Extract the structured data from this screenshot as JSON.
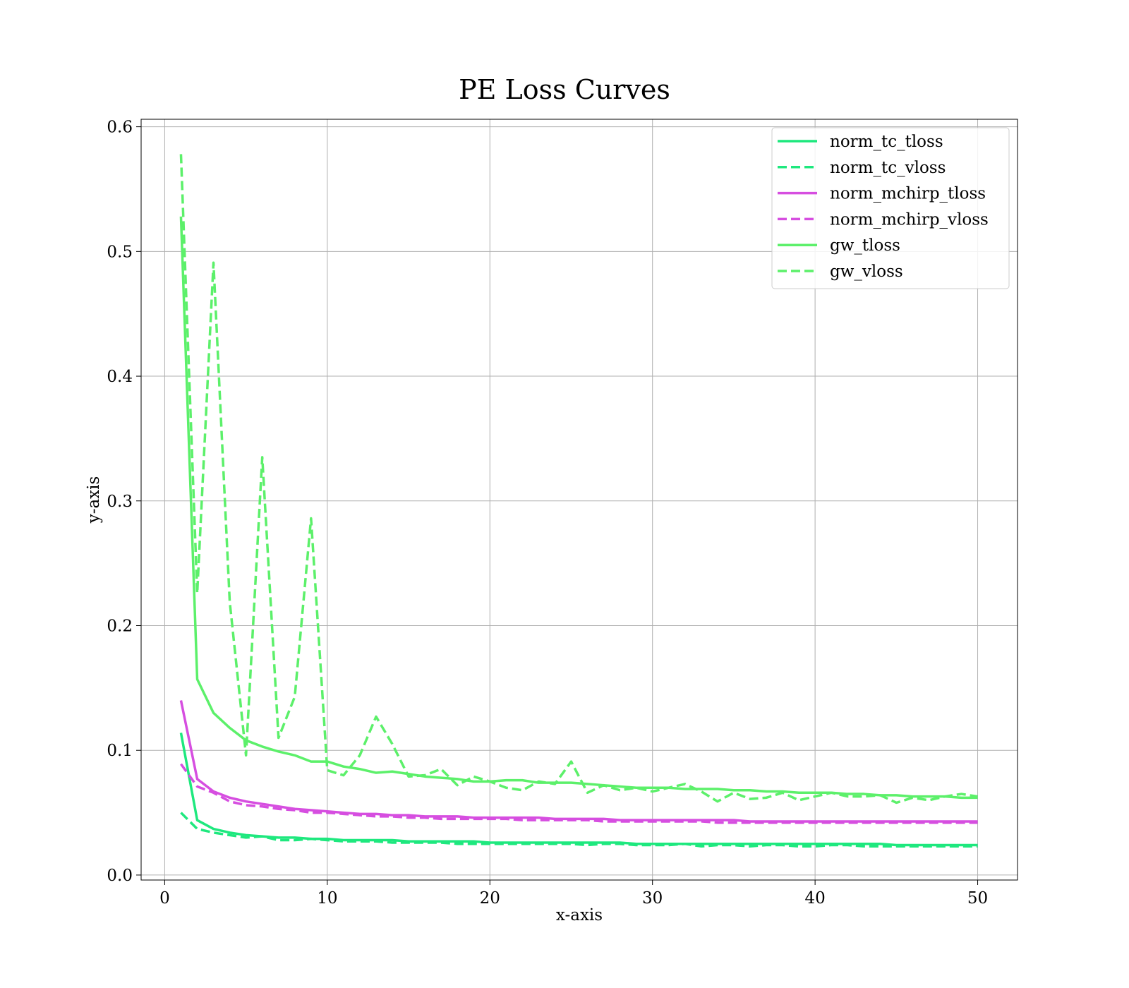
{
  "chart_data": {
    "type": "line",
    "title": "PE Loss Curves",
    "xlabel": "x-axis",
    "ylabel": "y-axis",
    "xlim": [
      -1.45,
      52.45
    ],
    "ylim": [
      -0.004,
      0.606
    ],
    "xticks": [
      0,
      10,
      20,
      30,
      40,
      50
    ],
    "xtick_labels": [
      "0",
      "10",
      "20",
      "30",
      "40",
      "50"
    ],
    "yticks": [
      0.0,
      0.1,
      0.2,
      0.3,
      0.4,
      0.5,
      0.6
    ],
    "ytick_labels": [
      "0.0",
      "0.1",
      "0.2",
      "0.3",
      "0.4",
      "0.5",
      "0.6"
    ],
    "grid": true,
    "legend_position": "top-right",
    "x": [
      1,
      2,
      3,
      4,
      5,
      6,
      7,
      8,
      9,
      10,
      11,
      12,
      13,
      14,
      15,
      16,
      17,
      18,
      19,
      20,
      21,
      22,
      23,
      24,
      25,
      26,
      27,
      28,
      29,
      30,
      31,
      32,
      33,
      34,
      35,
      36,
      37,
      38,
      39,
      40,
      41,
      42,
      43,
      44,
      45,
      46,
      47,
      48,
      49,
      50
    ],
    "series": [
      {
        "name": "norm_tc_tloss",
        "color": "#1ee87e",
        "style": "solid",
        "values": [
          0.114,
          0.044,
          0.037,
          0.034,
          0.032,
          0.031,
          0.03,
          0.03,
          0.029,
          0.029,
          0.028,
          0.028,
          0.028,
          0.028,
          0.027,
          0.027,
          0.027,
          0.027,
          0.027,
          0.026,
          0.026,
          0.026,
          0.026,
          0.026,
          0.026,
          0.026,
          0.026,
          0.026,
          0.025,
          0.025,
          0.025,
          0.025,
          0.025,
          0.025,
          0.025,
          0.025,
          0.025,
          0.025,
          0.025,
          0.025,
          0.025,
          0.025,
          0.025,
          0.025,
          0.024,
          0.024,
          0.024,
          0.024,
          0.024,
          0.024
        ]
      },
      {
        "name": "norm_tc_vloss",
        "color": "#1ee87e",
        "style": "dashed",
        "values": [
          0.05,
          0.037,
          0.034,
          0.032,
          0.03,
          0.031,
          0.028,
          0.028,
          0.029,
          0.028,
          0.027,
          0.027,
          0.027,
          0.026,
          0.026,
          0.026,
          0.026,
          0.025,
          0.025,
          0.025,
          0.025,
          0.025,
          0.025,
          0.025,
          0.025,
          0.024,
          0.025,
          0.025,
          0.024,
          0.024,
          0.024,
          0.025,
          0.023,
          0.024,
          0.024,
          0.023,
          0.024,
          0.024,
          0.023,
          0.023,
          0.024,
          0.024,
          0.023,
          0.023,
          0.023,
          0.023,
          0.023,
          0.023,
          0.023,
          0.023
        ]
      },
      {
        "name": "norm_mchirp_tloss",
        "color": "#d64ee0",
        "style": "solid",
        "values": [
          0.14,
          0.077,
          0.067,
          0.062,
          0.059,
          0.057,
          0.055,
          0.053,
          0.052,
          0.051,
          0.05,
          0.049,
          0.049,
          0.048,
          0.048,
          0.047,
          0.047,
          0.047,
          0.046,
          0.046,
          0.046,
          0.046,
          0.046,
          0.045,
          0.045,
          0.045,
          0.045,
          0.044,
          0.044,
          0.044,
          0.044,
          0.044,
          0.044,
          0.044,
          0.044,
          0.043,
          0.043,
          0.043,
          0.043,
          0.043,
          0.043,
          0.043,
          0.043,
          0.043,
          0.043,
          0.043,
          0.043,
          0.043,
          0.043,
          0.043
        ]
      },
      {
        "name": "norm_mchirp_vloss",
        "color": "#d64ee0",
        "style": "dashed",
        "values": [
          0.089,
          0.071,
          0.066,
          0.059,
          0.056,
          0.055,
          0.053,
          0.052,
          0.05,
          0.05,
          0.049,
          0.048,
          0.047,
          0.047,
          0.046,
          0.046,
          0.045,
          0.045,
          0.045,
          0.045,
          0.045,
          0.044,
          0.044,
          0.044,
          0.044,
          0.044,
          0.043,
          0.043,
          0.043,
          0.043,
          0.043,
          0.043,
          0.043,
          0.042,
          0.042,
          0.042,
          0.042,
          0.042,
          0.042,
          0.042,
          0.042,
          0.042,
          0.042,
          0.042,
          0.042,
          0.042,
          0.042,
          0.042,
          0.042,
          0.042
        ]
      },
      {
        "name": "gw_tloss",
        "color": "#5cf06a",
        "style": "solid",
        "values": [
          0.528,
          0.157,
          0.13,
          0.118,
          0.108,
          0.103,
          0.099,
          0.096,
          0.091,
          0.091,
          0.087,
          0.085,
          0.082,
          0.083,
          0.081,
          0.079,
          0.078,
          0.077,
          0.075,
          0.075,
          0.076,
          0.076,
          0.074,
          0.074,
          0.074,
          0.073,
          0.072,
          0.071,
          0.07,
          0.07,
          0.07,
          0.069,
          0.069,
          0.069,
          0.068,
          0.068,
          0.067,
          0.067,
          0.066,
          0.066,
          0.066,
          0.065,
          0.065,
          0.064,
          0.064,
          0.063,
          0.063,
          0.063,
          0.062,
          0.062
        ]
      },
      {
        "name": "gw_vloss",
        "color": "#5cf06a",
        "style": "dashed",
        "values": [
          0.578,
          0.226,
          0.491,
          0.219,
          0.096,
          0.335,
          0.11,
          0.143,
          0.286,
          0.084,
          0.08,
          0.096,
          0.127,
          0.105,
          0.079,
          0.08,
          0.085,
          0.072,
          0.079,
          0.075,
          0.07,
          0.068,
          0.075,
          0.073,
          0.091,
          0.066,
          0.072,
          0.068,
          0.07,
          0.067,
          0.07,
          0.073,
          0.067,
          0.059,
          0.066,
          0.061,
          0.062,
          0.066,
          0.06,
          0.063,
          0.066,
          0.063,
          0.063,
          0.064,
          0.058,
          0.062,
          0.06,
          0.063,
          0.065,
          0.063
        ]
      }
    ]
  }
}
